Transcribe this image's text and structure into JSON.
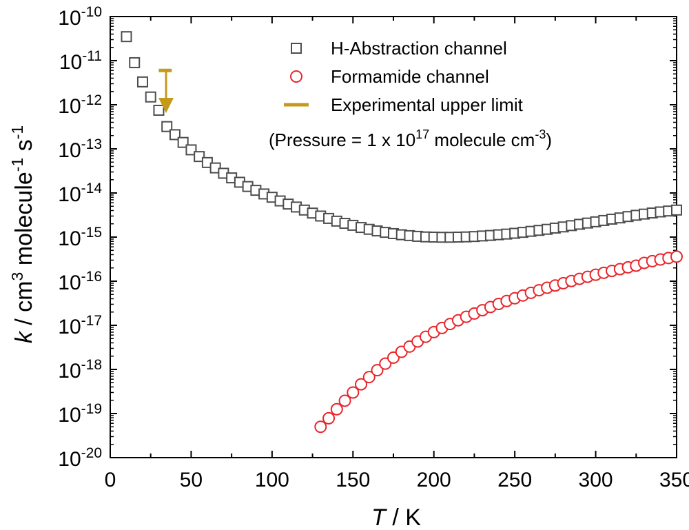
{
  "chart_data": {
    "type": "scatter",
    "y_scale": "log",
    "xlim": [
      0,
      350
    ],
    "ylim_exponents": [
      -20,
      -10
    ],
    "grid": false,
    "legend_position": "top-right",
    "x_ticks": [
      0,
      50,
      100,
      150,
      200,
      250,
      300,
      350
    ],
    "y_tick_exponents": [
      -10,
      -11,
      -12,
      -13,
      -14,
      -15,
      -16,
      -17,
      -18,
      -19,
      -20
    ],
    "y_tick_base": "10",
    "xlabel": {
      "italic": "T",
      "rest": " / K"
    },
    "ylabel": {
      "italic": "k",
      "parts": [
        {
          "text": " / cm",
          "sup": "3"
        },
        {
          "text": " molecule",
          "sup": "-1"
        },
        {
          "text": " s",
          "sup": "-1"
        }
      ]
    },
    "series": [
      {
        "name": "H-Abstraction channel",
        "marker": "square",
        "color": "#4d4d4d",
        "points": [
          [
            10,
            3.5e-11
          ],
          [
            15,
            9e-12
          ],
          [
            20,
            3.3e-12
          ],
          [
            25,
            1.5e-12
          ],
          [
            30,
            7.5e-13
          ],
          [
            35,
            3.2e-13
          ],
          [
            40,
            2.1e-13
          ],
          [
            45,
            1.4e-13
          ],
          [
            50,
            9.5e-14
          ],
          [
            55,
            6.7e-14
          ],
          [
            60,
            4.9e-14
          ],
          [
            65,
            3.7e-14
          ],
          [
            70,
            2.8e-14
          ],
          [
            75,
            2.2e-14
          ],
          [
            80,
            1.75e-14
          ],
          [
            85,
            1.4e-14
          ],
          [
            90,
            1.15e-14
          ],
          [
            95,
            9.5e-15
          ],
          [
            100,
            8e-15
          ],
          [
            105,
            6.6e-15
          ],
          [
            110,
            5.6e-15
          ],
          [
            115,
            4.8e-15
          ],
          [
            120,
            4.1e-15
          ],
          [
            125,
            3.5e-15
          ],
          [
            130,
            3e-15
          ],
          [
            135,
            2.65e-15
          ],
          [
            140,
            2.3e-15
          ],
          [
            145,
            2.05e-15
          ],
          [
            150,
            1.85e-15
          ],
          [
            155,
            1.65e-15
          ],
          [
            160,
            1.5e-15
          ],
          [
            165,
            1.38e-15
          ],
          [
            170,
            1.28e-15
          ],
          [
            175,
            1.2e-15
          ],
          [
            180,
            1.13e-15
          ],
          [
            185,
            1.08e-15
          ],
          [
            190,
            1.04e-15
          ],
          [
            195,
            1.01e-15
          ],
          [
            200,
            1e-15
          ],
          [
            205,
            9.9e-16
          ],
          [
            210,
            9.9e-16
          ],
          [
            215,
            1e-15
          ],
          [
            220,
            1.01e-15
          ],
          [
            225,
            1.03e-15
          ],
          [
            230,
            1.06e-15
          ],
          [
            235,
            1.09e-15
          ],
          [
            240,
            1.13e-15
          ],
          [
            245,
            1.17e-15
          ],
          [
            250,
            1.22e-15
          ],
          [
            255,
            1.28e-15
          ],
          [
            260,
            1.35e-15
          ],
          [
            265,
            1.42e-15
          ],
          [
            270,
            1.5e-15
          ],
          [
            275,
            1.6e-15
          ],
          [
            280,
            1.7e-15
          ],
          [
            285,
            1.82e-15
          ],
          [
            290,
            1.95e-15
          ],
          [
            295,
            2.08e-15
          ],
          [
            300,
            2.22e-15
          ],
          [
            305,
            2.38e-15
          ],
          [
            310,
            2.55e-15
          ],
          [
            315,
            2.72e-15
          ],
          [
            320,
            2.92e-15
          ],
          [
            325,
            3.12e-15
          ],
          [
            330,
            3.32e-15
          ],
          [
            335,
            3.52e-15
          ],
          [
            340,
            3.72e-15
          ],
          [
            345,
            3.9e-15
          ],
          [
            350,
            4.1e-15
          ]
        ]
      },
      {
        "name": "Formamide channel",
        "marker": "circle",
        "color": "#e8262b",
        "points": [
          [
            130,
            5e-20
          ],
          [
            135,
            7.8e-20
          ],
          [
            140,
            1.25e-19
          ],
          [
            145,
            1.95e-19
          ],
          [
            150,
            3e-19
          ],
          [
            155,
            4.6e-19
          ],
          [
            160,
            6.7e-19
          ],
          [
            165,
            9.6e-19
          ],
          [
            170,
            1.35e-18
          ],
          [
            175,
            1.85e-18
          ],
          [
            180,
            2.5e-18
          ],
          [
            185,
            3.3e-18
          ],
          [
            190,
            4.3e-18
          ],
          [
            195,
            5.5e-18
          ],
          [
            200,
            7e-18
          ],
          [
            205,
            8.7e-18
          ],
          [
            210,
            1.07e-17
          ],
          [
            215,
            1.3e-17
          ],
          [
            220,
            1.56e-17
          ],
          [
            225,
            1.85e-17
          ],
          [
            230,
            2.2e-17
          ],
          [
            235,
            2.6e-17
          ],
          [
            240,
            3.05e-17
          ],
          [
            245,
            3.55e-17
          ],
          [
            250,
            4.1e-17
          ],
          [
            255,
            4.75e-17
          ],
          [
            260,
            5.45e-17
          ],
          [
            265,
            6.25e-17
          ],
          [
            270,
            7.1e-17
          ],
          [
            275,
            8e-17
          ],
          [
            280,
            9e-17
          ],
          [
            285,
            1.01e-16
          ],
          [
            290,
            1.13e-16
          ],
          [
            295,
            1.26e-16
          ],
          [
            300,
            1.4e-16
          ],
          [
            305,
            1.55e-16
          ],
          [
            310,
            1.71e-16
          ],
          [
            315,
            1.88e-16
          ],
          [
            320,
            2.06e-16
          ],
          [
            325,
            2.25e-16
          ],
          [
            330,
            2.6e-16
          ],
          [
            335,
            2.85e-16
          ],
          [
            340,
            3.1e-16
          ],
          [
            345,
            3.35e-16
          ],
          [
            350,
            3.6e-16
          ]
        ]
      },
      {
        "name": "Experimental upper limit",
        "marker": "bar-arrow",
        "color": "#c59a1a",
        "points": [
          [
            34.5,
            6e-12
          ]
        ],
        "arrow_to": 6.5e-13,
        "bar_x_range": [
          30,
          38
        ]
      }
    ],
    "annotation": {
      "prefix": "(Pressure = 1 x 10",
      "sup1": "17",
      "middle": " molecule cm",
      "sup2": "-3",
      "suffix": ")"
    }
  }
}
